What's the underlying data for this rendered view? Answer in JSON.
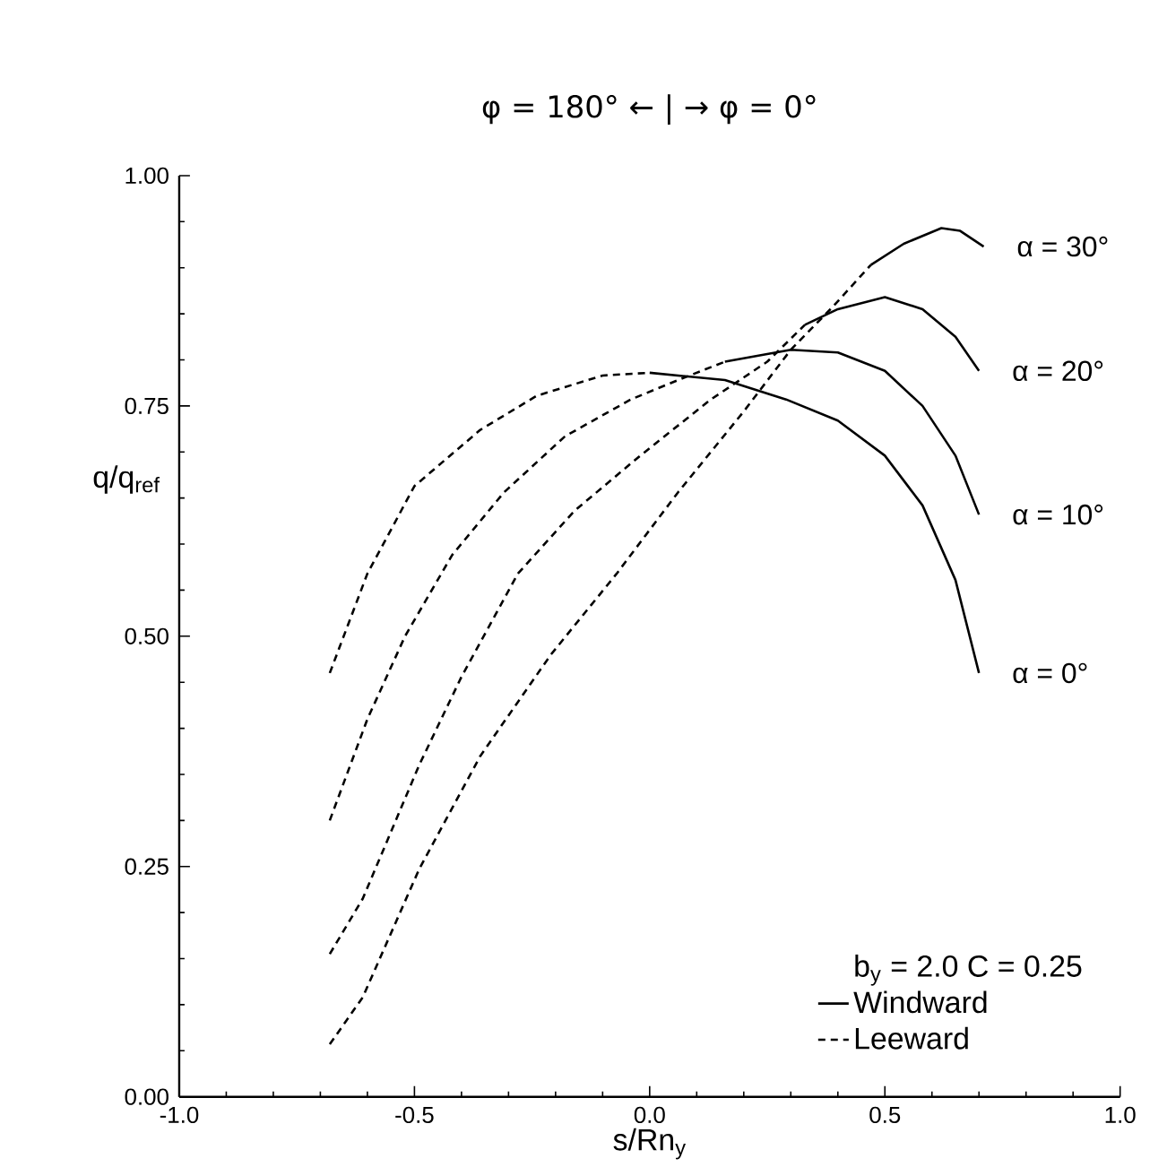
{
  "chart_data": {
    "type": "line",
    "title": "φ = 180° ← | → φ = 0°",
    "xlabel": "s/Rn$_{y}$",
    "ylabel": "q/q$_{ref}$",
    "legend_title": "b$_{y}$ = 2.0  C = 0.25",
    "legend": "bottom right",
    "grid": false,
    "xlim": [
      -1,
      1
    ],
    "ylim": [
      0,
      1
    ],
    "xticks": [
      {
        "value": -1,
        "label": "-1.0"
      },
      {
        "value": -0.5,
        "label": "-0.5"
      },
      {
        "value": 0,
        "label": "0.0"
      },
      {
        "value": 0.5,
        "label": "0.5"
      },
      {
        "value": 1,
        "label": "1.0"
      }
    ],
    "yticks": [
      {
        "value": 0,
        "label": "0.00"
      },
      {
        "value": 0.25,
        "label": "0.25"
      },
      {
        "value": 0.5,
        "label": "0.50"
      },
      {
        "value": 0.75,
        "label": "0.75"
      },
      {
        "value": 1,
        "label": "1.00"
      }
    ],
    "series": [
      {
        "name": "Windward",
        "color": "#000000",
        "line_style": "solid",
        "x": [
          0.0,
          0.16,
          0.29,
          0.4,
          0.5,
          0.58,
          0.65,
          0.7
        ],
        "values": [
          0.786,
          0.778,
          0.757,
          0.734,
          0.696,
          0.642,
          0.561,
          0.46
        ]
      },
      {
        "name": "Leeward",
        "color": "#000000",
        "line_style": "dashed",
        "x": [
          -0.68,
          -0.6,
          -0.5,
          -0.36,
          -0.24,
          -0.1,
          0.0
        ],
        "values": [
          0.46,
          0.568,
          0.663,
          0.724,
          0.761,
          0.783,
          0.786
        ]
      },
      {
        "color": "#000000",
        "line_style": "dashed",
        "x": [
          -0.68,
          -0.6,
          -0.52,
          -0.42,
          -0.31,
          -0.18,
          -0.04,
          0.06,
          0.16
        ],
        "values": [
          0.3,
          0.41,
          0.5,
          0.588,
          0.656,
          0.717,
          0.757,
          0.778,
          0.798
        ]
      },
      {
        "color": "#000000",
        "line_style": "solid",
        "x": [
          0.16,
          0.3,
          0.4,
          0.5,
          0.58,
          0.65,
          0.7
        ],
        "values": [
          0.798,
          0.811,
          0.808,
          0.788,
          0.75,
          0.696,
          0.632
        ]
      },
      {
        "color": "#000000",
        "line_style": "dashed",
        "x": [
          -0.68,
          -0.61,
          -0.49,
          -0.4,
          -0.28,
          -0.16,
          -0.02,
          0.13,
          0.25,
          0.33
        ],
        "values": [
          0.155,
          0.215,
          0.36,
          0.456,
          0.568,
          0.636,
          0.696,
          0.757,
          0.798,
          0.838
        ]
      },
      {
        "color": "#000000",
        "line_style": "solid",
        "x": [
          0.33,
          0.4,
          0.5,
          0.58,
          0.65,
          0.7
        ],
        "values": [
          0.838,
          0.855,
          0.868,
          0.855,
          0.825,
          0.788
        ]
      },
      {
        "color": "#000000",
        "line_style": "dashed",
        "x": [
          -0.68,
          -0.61,
          -0.49,
          -0.36,
          -0.21,
          -0.07,
          0.06,
          0.2,
          0.3,
          0.39,
          0.47
        ],
        "values": [
          0.057,
          0.108,
          0.247,
          0.37,
          0.48,
          0.568,
          0.656,
          0.744,
          0.811,
          0.858,
          0.903
        ]
      },
      {
        "color": "#000000",
        "line_style": "solid",
        "x": [
          0.47,
          0.54,
          0.62,
          0.66,
          0.71
        ],
        "values": [
          0.903,
          0.926,
          0.943,
          0.94,
          0.923
        ]
      }
    ],
    "annotations": [
      "α = 30°",
      "α = 20°",
      "α = 10°",
      "α = 0°"
    ]
  }
}
